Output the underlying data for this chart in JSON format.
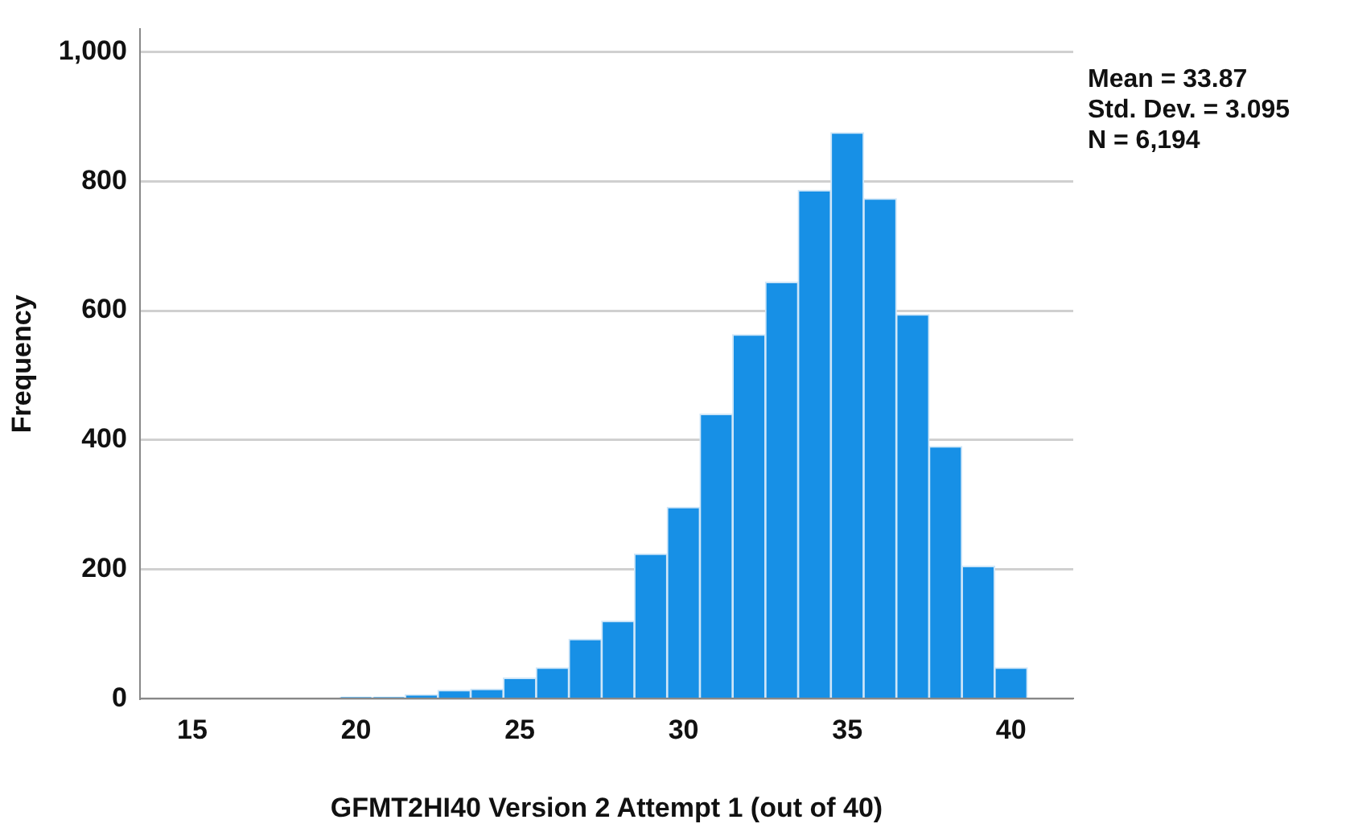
{
  "chart_data": {
    "type": "histogram",
    "xlabel": "GFMT2HI40 Version 2 Attempt 1 (out of 40)",
    "ylabel": "Frequency",
    "bins": [
      19.5,
      20.5,
      21.5,
      22.5,
      23.5,
      24.5,
      25.5,
      26.5,
      27.5,
      28.5,
      29.5,
      30.5,
      31.5,
      32.5,
      33.5,
      34.5,
      35.5,
      36.5,
      37.5,
      38.5,
      39.5,
      40.5
    ],
    "values": [
      2,
      2,
      6,
      13,
      15,
      32,
      48,
      92,
      120,
      224,
      296,
      440,
      563,
      644,
      786,
      875,
      773,
      594,
      390,
      205,
      48
    ],
    "color": "#1790e6",
    "xlim": [
      13.4,
      41.9
    ],
    "xticks": [
      15,
      20,
      25,
      30,
      35,
      40
    ],
    "ylim": [
      0,
      1035
    ],
    "yticks": [
      0,
      200,
      400,
      600,
      800,
      {
        "value": 1000,
        "label": "1,000"
      }
    ],
    "grid": "y",
    "annotations": [
      "Mean = 33.87",
      "Std. Dev. = 3.095",
      "N = 6,194"
    ]
  }
}
